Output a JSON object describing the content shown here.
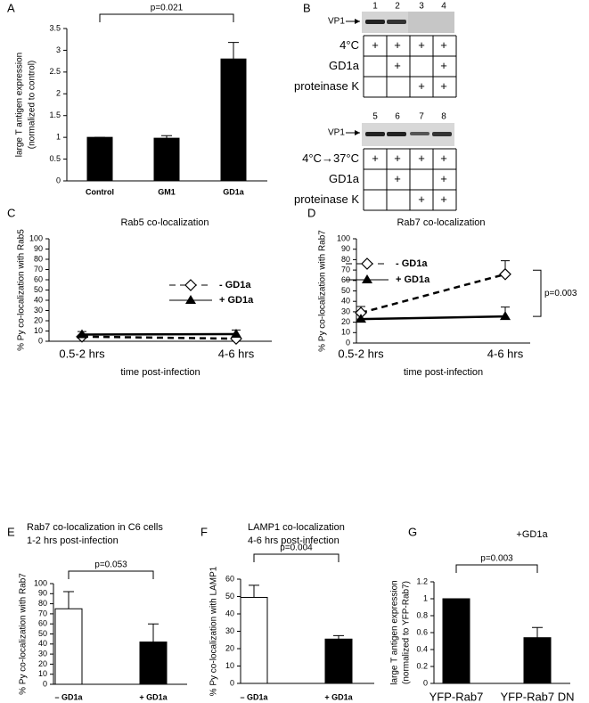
{
  "panel_labels": [
    "A",
    "B",
    "C",
    "D",
    "E",
    "F",
    "G"
  ],
  "blots": [
    {
      "label": "VP1",
      "lanes": [
        "1",
        "2",
        "3",
        "4"
      ],
      "rows": [
        {
          "label": "4°C",
          "cells": [
            "+",
            "+",
            "+",
            "+"
          ]
        },
        {
          "label": "GD1a",
          "cells": [
            null,
            "+",
            null,
            "+"
          ]
        },
        {
          "label": "proteinase K",
          "cells": [
            null,
            null,
            "+",
            "+"
          ]
        }
      ]
    },
    {
      "label": "VP1",
      "lanes": [
        "5",
        "6",
        "7",
        "8"
      ],
      "rows": [
        {
          "label": "4°C→37°C",
          "cells": [
            "+",
            "+",
            "+",
            "+"
          ]
        },
        {
          "label": "GD1a",
          "cells": [
            null,
            "+",
            null,
            "+"
          ]
        },
        {
          "label": "proteinase K",
          "cells": [
            null,
            null,
            "+",
            "+"
          ]
        }
      ]
    }
  ],
  "chart_data": [
    {
      "type": "bar",
      "ylabel": [
        "large T antigen expression",
        "(normalized to control)"
      ],
      "categories": [
        "Control",
        "GM1",
        "GD1a"
      ],
      "values": [
        1,
        0.98,
        2.8
      ],
      "errors": [
        0,
        0.06,
        0.38
      ],
      "color": "#000000",
      "ylim": [
        0,
        3.5
      ],
      "yticks": [
        0,
        0.5,
        1,
        1.5,
        2,
        2.5,
        3,
        3.5
      ],
      "p_value": "p=0.021"
    },
    {
      "type": "line",
      "title": [
        "Rab5 co-localization"
      ],
      "ylabel": [
        "% Py co-localization with Rab5"
      ],
      "xlabel": "time post-infection",
      "categories": [
        "0.5-2 hrs",
        "4-6 hrs"
      ],
      "series": [
        {
          "name": "- GD1a",
          "color": "#000000",
          "style": "dashed",
          "marker": "diamond",
          "values": [
            4.5,
            2.5
          ],
          "errors": [
            1,
            1
          ]
        },
        {
          "name": "+ GD1a",
          "color": "#000000",
          "style": "solid",
          "marker": "triangle",
          "values": [
            6.5,
            7
          ],
          "errors": [
            3,
            4
          ]
        }
      ],
      "ylim": [
        0,
        100
      ],
      "yticks": [
        0,
        10,
        20,
        30,
        40,
        50,
        60,
        70,
        80,
        90,
        100
      ]
    },
    {
      "type": "line",
      "title": [
        "Rab7 co-localization"
      ],
      "ylabel": [
        "% Py co-localization with Rab7"
      ],
      "xlabel": "time post-infection",
      "categories": [
        "0.5-2 hrs",
        "4-6 hrs"
      ],
      "series": [
        {
          "name": "- GD1a",
          "color": "#000000",
          "style": "dashed",
          "marker": "diamond",
          "values": [
            29,
            66
          ],
          "errors": [
            6,
            13
          ]
        },
        {
          "name": "+ GD1a",
          "color": "#000000",
          "style": "solid",
          "marker": "triangle",
          "values": [
            23,
            25.5
          ],
          "errors": [
            0,
            9
          ]
        }
      ],
      "ylim": [
        0,
        100
      ],
      "yticks": [
        0,
        10,
        20,
        30,
        40,
        50,
        60,
        70,
        80,
        90,
        100
      ],
      "p_value": "p=0.003"
    },
    {
      "type": "bar",
      "title": [
        "Rab7 co-localization in C6 cells",
        "1-2 hrs post-infection"
      ],
      "ylabel": [
        "% Py co-localization with Rab7"
      ],
      "categories": [
        "– GD1a",
        "+ GD1a"
      ],
      "values": [
        75,
        42
      ],
      "errors": [
        17,
        18
      ],
      "colors": [
        "#ffffff",
        "#000000"
      ],
      "ylim": [
        0,
        100
      ],
      "yticks": [
        0,
        10,
        20,
        30,
        40,
        50,
        60,
        70,
        80,
        90,
        100
      ],
      "p_value": "p=0.053"
    },
    {
      "type": "bar",
      "title": [
        "LAMP1 co-localization",
        "4-6 hrs post-infection"
      ],
      "ylabel": [
        "% Py co-localization with LAMP1"
      ],
      "categories": [
        "– GD1a",
        "+ GD1a"
      ],
      "values": [
        49.5,
        25.5
      ],
      "errors": [
        7,
        2
      ],
      "colors": [
        "#ffffff",
        "#000000"
      ],
      "ylim": [
        0,
        60
      ],
      "yticks": [
        0,
        10,
        20,
        30,
        40,
        50,
        60
      ],
      "p_value": "p=0.004"
    },
    {
      "type": "bar",
      "title": [
        "+GD1a"
      ],
      "ylabel": [
        "large T antigen expression",
        "(normalized to YFP-Rab7)"
      ],
      "categories": [
        "YFP-Rab7",
        "YFP-Rab7 DN"
      ],
      "values": [
        1,
        0.54
      ],
      "errors": [
        0,
        0.12
      ],
      "color": "#000000",
      "ylim": [
        0,
        1.2
      ],
      "yticks": [
        0,
        0.2,
        0.4,
        0.6,
        0.8,
        1,
        1.2
      ],
      "p_value": "p=0.003"
    }
  ]
}
